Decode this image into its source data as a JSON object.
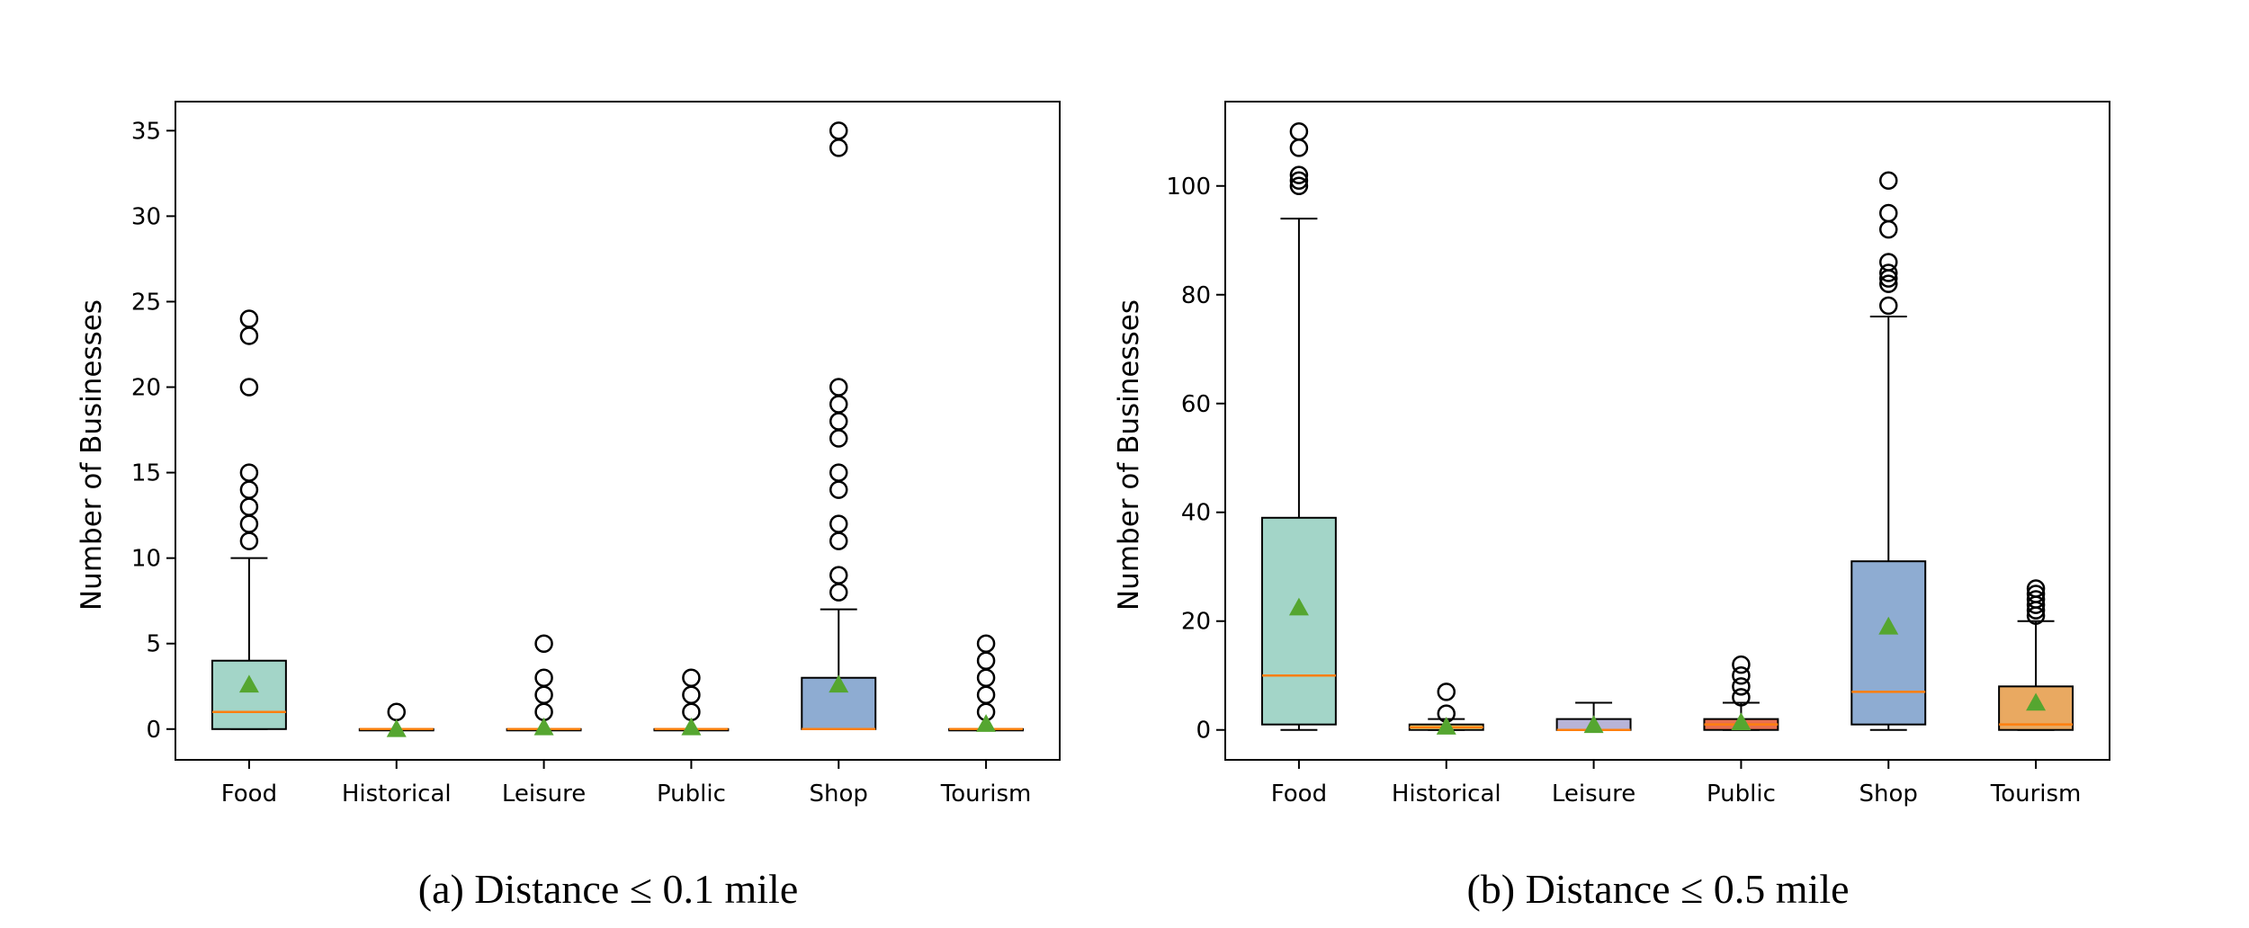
{
  "chart_data": [
    {
      "type": "box",
      "caption": "(a) Distance ≤ 0.1 mile",
      "ylabel": "Number of Businesses",
      "ylim": [
        -1.8,
        36.7
      ],
      "yticks": [
        0,
        5,
        10,
        15,
        20,
        25,
        30,
        35
      ],
      "categories": [
        "Food",
        "Historical",
        "Leisure",
        "Public",
        "Shop",
        "Tourism"
      ],
      "boxes": [
        {
          "category": "Food",
          "q1": 0,
          "median": 1,
          "q3": 4,
          "whisker_low": 0,
          "whisker_high": 10,
          "mean": 2.6,
          "outliers": [
            11,
            12,
            13,
            14,
            15,
            20,
            23,
            24
          ],
          "color": "#a3d5c8"
        },
        {
          "category": "Historical",
          "q1": 0,
          "median": 0,
          "q3": 0,
          "whisker_low": 0,
          "whisker_high": 0,
          "mean": 0.0,
          "outliers": [
            1
          ],
          "color": "#f7eb8b"
        },
        {
          "category": "Leisure",
          "q1": 0,
          "median": 0,
          "q3": 0,
          "whisker_low": 0,
          "whisker_high": 0,
          "mean": 0.1,
          "outliers": [
            1,
            2,
            3,
            5
          ],
          "color": "#b8b4d8"
        },
        {
          "category": "Public",
          "q1": 0,
          "median": 0,
          "q3": 0,
          "whisker_low": 0,
          "whisker_high": 0,
          "mean": 0.1,
          "outliers": [
            1,
            2,
            3
          ],
          "color": "#e8704f"
        },
        {
          "category": "Shop",
          "q1": 0,
          "median": 0,
          "q3": 3,
          "whisker_low": 0,
          "whisker_high": 7,
          "mean": 2.6,
          "outliers": [
            8,
            9,
            11,
            12,
            14,
            15,
            17,
            18,
            19,
            20,
            34,
            35
          ],
          "color": "#8eacd2"
        },
        {
          "category": "Tourism",
          "q1": 0,
          "median": 0,
          "q3": 0,
          "whisker_low": 0,
          "whisker_high": 0,
          "mean": 0.3,
          "outliers": [
            1,
            2,
            3,
            4,
            5
          ],
          "color": "#e9a961"
        }
      ]
    },
    {
      "type": "box",
      "caption": "(b) Distance ≤ 0.5 mile",
      "ylabel": "Number of Businesses",
      "ylim": [
        -5.5,
        115.5
      ],
      "yticks": [
        0,
        20,
        40,
        60,
        80,
        100
      ],
      "categories": [
        "Food",
        "Historical",
        "Leisure",
        "Public",
        "Shop",
        "Tourism"
      ],
      "boxes": [
        {
          "category": "Food",
          "q1": 1,
          "median": 10,
          "q3": 39,
          "whisker_low": 0,
          "whisker_high": 94,
          "mean": 22.5,
          "outliers": [
            100,
            101,
            102,
            107,
            110
          ],
          "color": "#a3d5c8"
        },
        {
          "category": "Historical",
          "q1": 0,
          "median": 0.5,
          "q3": 1,
          "whisker_low": 0,
          "whisker_high": 2,
          "mean": 0.6,
          "outliers": [
            3,
            7
          ],
          "color": "#f7eb8b"
        },
        {
          "category": "Leisure",
          "q1": 0,
          "median": 0,
          "q3": 2,
          "whisker_low": 0,
          "whisker_high": 5,
          "mean": 0.9,
          "outliers": [],
          "color": "#b8b4d8"
        },
        {
          "category": "Public",
          "q1": 0,
          "median": 1,
          "q3": 2,
          "whisker_low": 0,
          "whisker_high": 5,
          "mean": 1.4,
          "outliers": [
            6,
            8,
            10,
            12
          ],
          "color": "#e8704f"
        },
        {
          "category": "Shop",
          "q1": 1,
          "median": 7,
          "q3": 31,
          "whisker_low": 0,
          "whisker_high": 76,
          "mean": 19,
          "outliers": [
            78,
            82,
            83,
            84,
            86,
            92,
            95,
            101
          ],
          "color": "#8eacd2"
        },
        {
          "category": "Tourism",
          "q1": 0,
          "median": 1,
          "q3": 8,
          "whisker_low": 0,
          "whisker_high": 20,
          "mean": 5,
          "outliers": [
            21,
            22,
            23,
            24,
            25,
            26
          ],
          "color": "#e9a961"
        }
      ]
    }
  ],
  "style": {
    "median_color": "#ff7f0e",
    "mean_color": "#55a630"
  }
}
